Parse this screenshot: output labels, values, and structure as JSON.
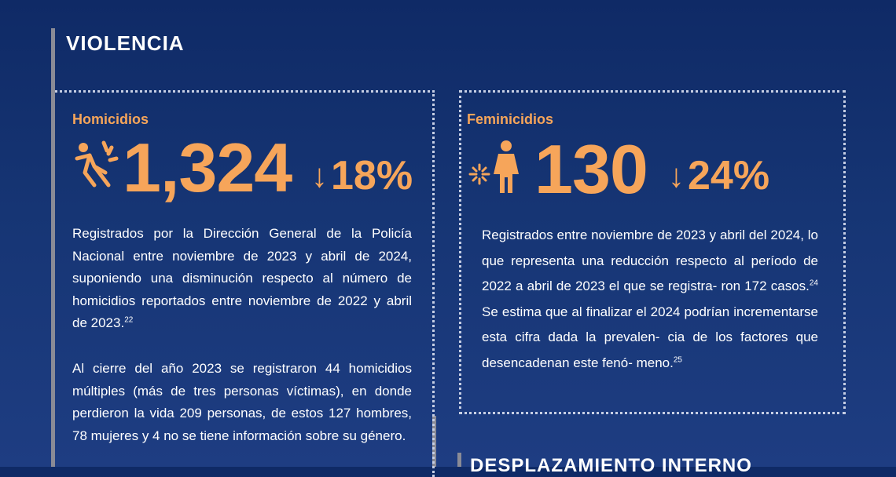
{
  "section": {
    "title": "VIOLENCIA",
    "next_title": "DESPLAZAMIENTO INTERNO"
  },
  "homicidios": {
    "label": "Homicidios",
    "value": "1,324",
    "arrow": "↓",
    "change": "18%",
    "icon": "falling-person-icon",
    "para1": "Registrados por la Dirección General de la Policía Nacional entre noviembre de 2023 y abril de 2024, suponiendo una disminución respecto al número de homicidios reportados entre noviembre de 2022 y abril de 2023.",
    "para1_ref": "22",
    "para2": "Al cierre del año 2023 se registraron 44 homicidios múltiples (más de tres personas víctimas), en donde perdieron la vida 209 personas, de estos 127 hombres, 78 mujeres y 4 no se tiene información sobre su género."
  },
  "feminicidios": {
    "label": "Feminicidios",
    "value": "130",
    "arrow": "↓",
    "change": "24%",
    "icon": "woman-impact-icon",
    "para_a": "Registrados entre noviembre de 2023 y abril del 2024, lo que representa una reducción respecto al período de 2022 a abril de 2023 el que se registra- ron 172 casos.",
    "ref_a": "24",
    "para_b": " Se estima que al finalizar el 2024 podrían incrementarse esta cifra dada la prevalen- cia de los factores que desencadenan este fenó- meno.",
    "ref_b": "25"
  },
  "colors": {
    "accent": "#f6a55a",
    "background": "#163574",
    "bar": "#8a8b96",
    "dots": "#c7cfe4"
  }
}
